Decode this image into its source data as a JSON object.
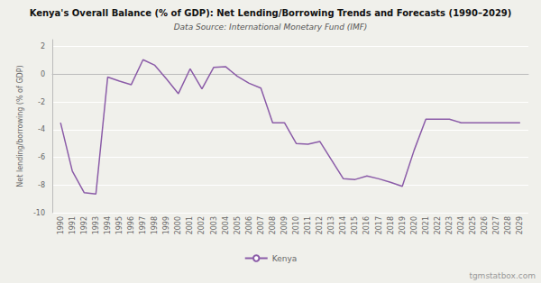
{
  "chart_data": {
    "type": "line",
    "title": "Kenya's Overall Balance (% of GDP): Net Lending/Borrowing Trends and Forecasts (1990–2029)",
    "subtitle": "Data Source: International Monetary Fund (IMF)",
    "ylabel": "Net lending/borrowing (% of GDP)",
    "annotations": [
      "tgmstatbox.com"
    ],
    "x": [
      1990,
      1991,
      1992,
      1993,
      1994,
      1995,
      1996,
      1997,
      1998,
      1999,
      2000,
      2001,
      2002,
      2003,
      2004,
      2005,
      2006,
      2007,
      2008,
      2009,
      2010,
      2011,
      2012,
      2013,
      2014,
      2015,
      2016,
      2017,
      2018,
      2019,
      2020,
      2021,
      2022,
      2023,
      2024,
      2025,
      2026,
      2027,
      2028,
      2029
    ],
    "series": [
      {
        "name": "Kenya",
        "color": "#8B5CA8",
        "values": [
          -3.5,
          -7.0,
          -8.55,
          -8.65,
          -0.2,
          -0.5,
          -0.75,
          1.05,
          0.65,
          -0.35,
          -1.4,
          0.4,
          -1.05,
          0.5,
          0.55,
          -0.15,
          -0.65,
          -1.0,
          -3.5,
          -3.5,
          -5.0,
          -5.05,
          -4.85,
          -6.2,
          -7.55,
          -7.6,
          -7.35,
          -7.55,
          -7.8,
          -8.1,
          -5.5,
          -3.25,
          -3.25,
          -3.25,
          -3.5,
          -3.5,
          -3.5,
          -3.5,
          -3.5,
          -3.5
        ]
      }
    ],
    "xlim": [
      1989.3,
      2029.7
    ],
    "xticks": [
      1990,
      1991,
      1992,
      1993,
      1994,
      1995,
      1996,
      1997,
      1998,
      1999,
      2000,
      2001,
      2002,
      2003,
      2004,
      2005,
      2006,
      2007,
      2008,
      2009,
      2010,
      2011,
      2012,
      2013,
      2014,
      2015,
      2016,
      2017,
      2018,
      2019,
      2020,
      2021,
      2022,
      2023,
      2024,
      2025,
      2026,
      2027,
      2028,
      2029
    ],
    "ylim": [
      -10,
      2.5
    ],
    "yticks": [
      -10,
      -8,
      -6,
      -4,
      -2,
      0,
      2
    ],
    "grid": true,
    "legend": "bottom"
  }
}
